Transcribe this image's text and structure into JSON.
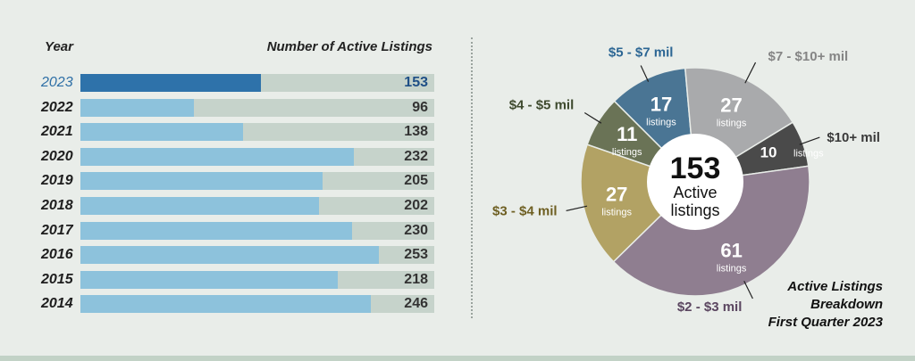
{
  "bar_chart": {
    "header_left": "Year",
    "header_right": "Number of Active Listings"
  },
  "pie_chart": {
    "center_value": "153",
    "center_line1": "Active",
    "center_line2": "listings",
    "caption": [
      "Active Listings",
      "Breakdown",
      "First Quarter 2023"
    ]
  },
  "colors": {
    "bar_current": "#2e72aa",
    "bar_other": "#8dc2dc",
    "track": "#c6d3cb",
    "background": "#e9ede9"
  },
  "chart_data": [
    {
      "type": "bar",
      "orientation": "horizontal",
      "categories": [
        "2023",
        "2022",
        "2021",
        "2020",
        "2019",
        "2018",
        "2017",
        "2016",
        "2015",
        "2014"
      ],
      "values": [
        153,
        96,
        138,
        232,
        205,
        202,
        230,
        253,
        218,
        246
      ],
      "highlighted": "2023",
      "xlabel": "Number of Active Listings",
      "ylabel": "Year",
      "xlim": [
        0,
        300
      ]
    },
    {
      "type": "pie",
      "style": "donut",
      "total": 153,
      "slices": [
        {
          "label": "$5 - $7 mil",
          "value": 17,
          "unit": "listings",
          "color": "#4a7594",
          "label_color": "#2c6694"
        },
        {
          "label": "$7 - $10+ mil",
          "value": 27,
          "unit": "listings",
          "color": "#a9aaac",
          "label_color": "#858585"
        },
        {
          "label": "$10+ mil",
          "value": 10,
          "unit": "listings",
          "color": "#4a4a4a",
          "label_color": "#3a3a3a"
        },
        {
          "label": "$2 - $3 mil",
          "value": 61,
          "unit": "listings",
          "color": "#8f7e90",
          "label_color": "#5b4660"
        },
        {
          "label": "$3 - $4 mil",
          "value": 27,
          "unit": "listings",
          "color": "#b2a264",
          "label_color": "#6e5f22"
        },
        {
          "label": "$4 - $5 mil",
          "value": 11,
          "unit": "listings",
          "color": "#6a7356",
          "label_color": "#3e4a2e"
        }
      ]
    }
  ]
}
